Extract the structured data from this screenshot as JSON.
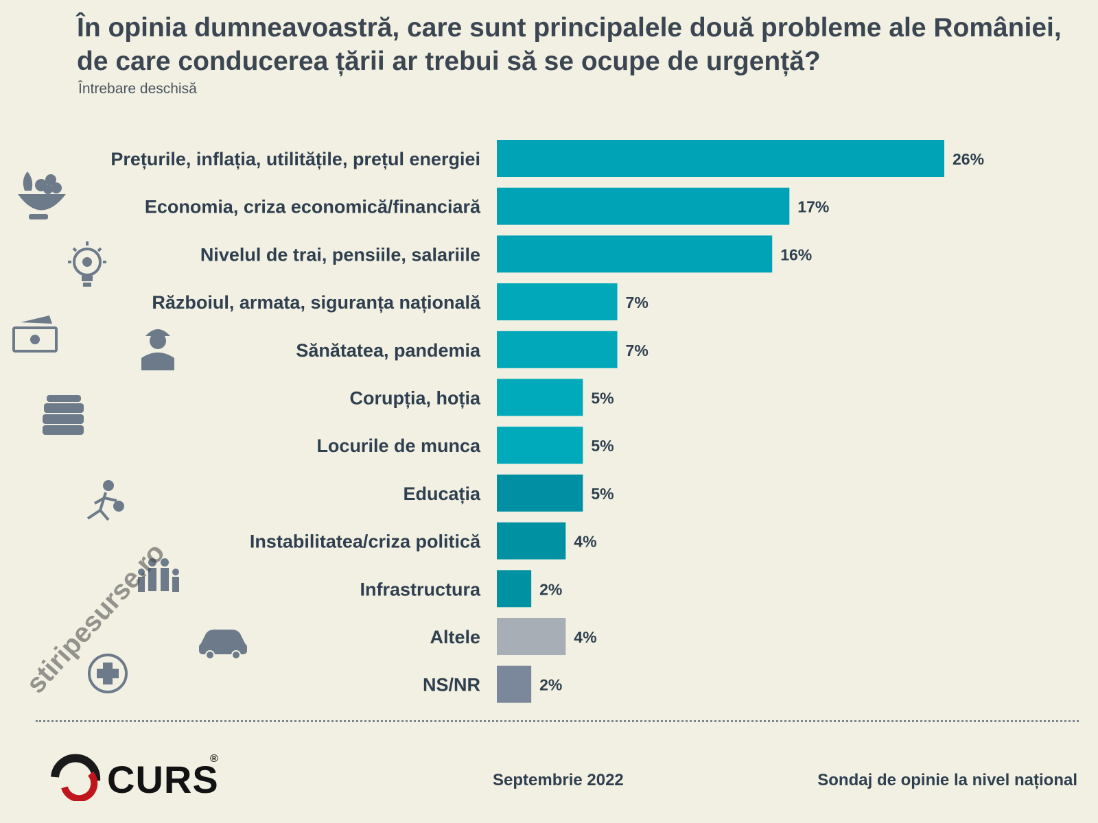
{
  "chart_data": {
    "type": "bar",
    "orientation": "horizontal",
    "title": "În opinia dumneavoastră, care sunt principalele două probleme ale României, de care conducerea țării ar trebui să se ocupe de urgență?",
    "subtitle": "Întrebare deschisă",
    "categories": [
      "Prețurile, inflația, utilitățile, prețul energiei",
      "Economia, criza economică/financiară",
      "Nivelul de trai, pensiile, salariile",
      "Războiul, armata, siguranța națională",
      "Sănătatea, pandemia",
      "Corupția, hoția",
      "Locurile de munca",
      "Educația",
      "Instabilitatea/criza politică",
      "Infrastructura",
      "Altele",
      "NS/NR"
    ],
    "values": [
      26,
      17,
      16,
      7,
      7,
      5,
      5,
      5,
      4,
      2,
      4,
      2
    ],
    "value_labels": [
      "26%",
      "17%",
      "16%",
      "7%",
      "7%",
      "5%",
      "5%",
      "5%",
      "4%",
      "2%",
      "4%",
      "2%"
    ],
    "bar_colors": [
      "#00a3b6",
      "#00a3b6",
      "#00a3b6",
      "#00a8ba",
      "#00a8ba",
      "#00aabb",
      "#00aabb",
      "#008fa3",
      "#0092a3",
      "#0092a3",
      "#a7aeb6",
      "#7b879a"
    ],
    "xlim": [
      0,
      26
    ],
    "grid": false,
    "legend": "none"
  },
  "footer": {
    "date": "Septembrie 2022",
    "survey": "Sondaj de opinie la nivel național",
    "brand": "CURS",
    "registered": "®"
  },
  "watermark": "stiripesurse.ro",
  "icons": [
    "fruit-basket-icon",
    "lightbulb-gear-icon",
    "money-icon",
    "soldier-icon",
    "books-icon",
    "thief-running-icon",
    "family-icon",
    "car-icon",
    "medical-cross-icon"
  ]
}
